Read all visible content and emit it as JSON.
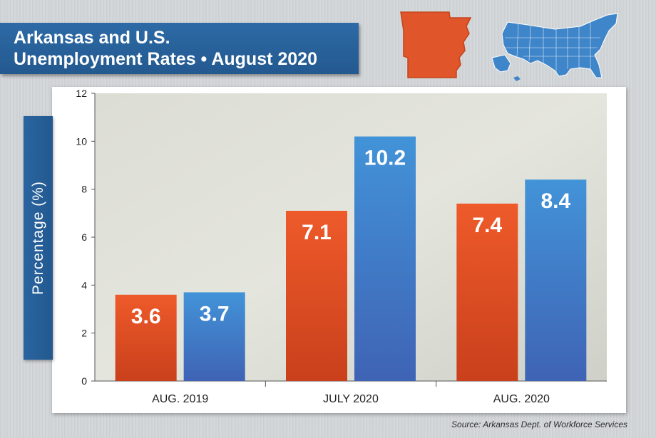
{
  "title": {
    "line1": "Arkansas and U.S.",
    "line2": "Unemployment Rates • August 2020"
  },
  "icons": {
    "state": "arkansas-map-icon",
    "country": "us-map-icon"
  },
  "colors": {
    "arkansas": "#e0552a",
    "us": "#3f85c9",
    "banner": "#285f9a"
  },
  "source": "Source: Arkansas Dept. of Workforce Services",
  "chart_data": {
    "type": "bar",
    "title": "Arkansas and U.S. Unemployment Rates • August 2020",
    "xlabel": "",
    "ylabel": "Percentage (%)",
    "ylim": [
      0,
      12
    ],
    "yticks": [
      0,
      2,
      4,
      6,
      8,
      10,
      12
    ],
    "grid": false,
    "categories": [
      "AUG. 2019",
      "JULY 2020",
      "AUG. 2020"
    ],
    "series": [
      {
        "name": "Arkansas",
        "values": [
          3.6,
          7.1,
          7.4
        ],
        "labels": [
          "3.6",
          "7.1",
          "7.4"
        ]
      },
      {
        "name": "U.S.",
        "values": [
          3.7,
          10.2,
          8.4
        ],
        "labels": [
          "3.7",
          "10.2",
          "8.4"
        ]
      }
    ]
  }
}
